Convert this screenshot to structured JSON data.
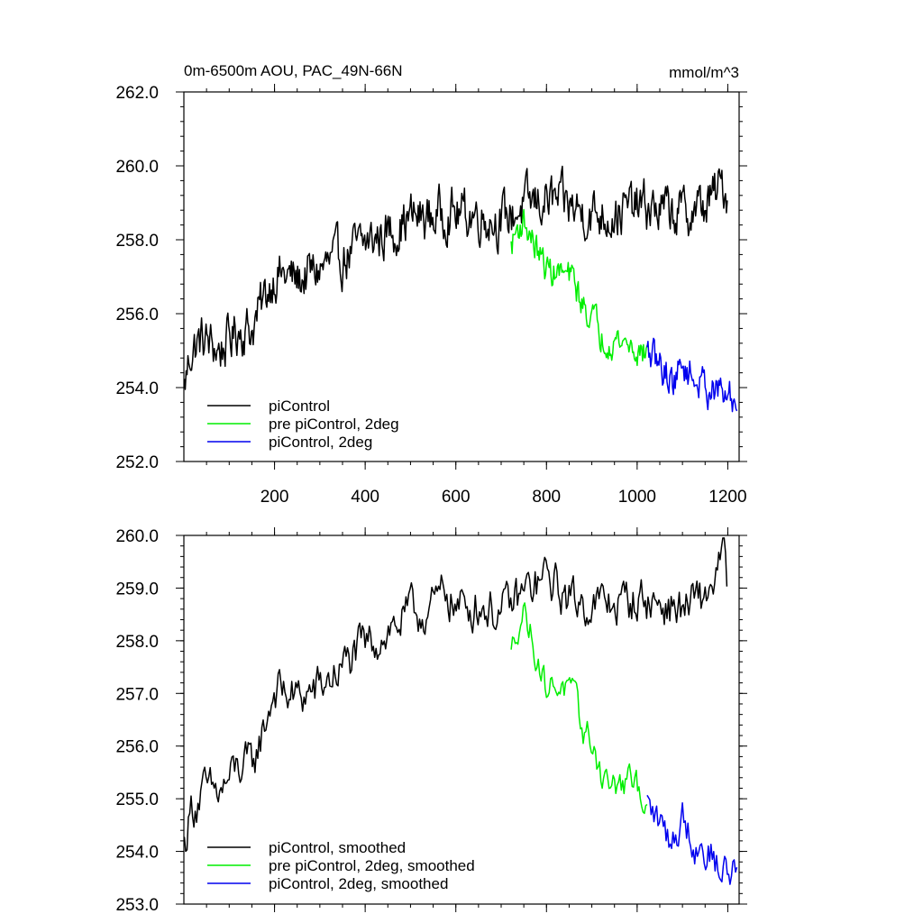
{
  "chart_data": [
    {
      "type": "line",
      "title": "0m-6500m AOU, PAC_49N-66N",
      "units": "mmol/m^3",
      "xlim": [
        0,
        1225
      ],
      "ylim": [
        252,
        262
      ],
      "x_ticks": [
        200,
        400,
        600,
        800,
        1000,
        1200
      ],
      "x_tick_labels": [
        "200",
        "400",
        "600",
        "800",
        "1000",
        "1200"
      ],
      "y_ticks": [
        252,
        254,
        256,
        258,
        260,
        262
      ],
      "y_tick_labels": [
        "252.0",
        "254.0",
        "256.0",
        "258.0",
        "260.0",
        "262.0"
      ],
      "legend_position": "bottom-left",
      "series": [
        {
          "name": "piControl",
          "color": "#000000",
          "noise": 0.55,
          "x": [
            1,
            15,
            40,
            80,
            120,
            150,
            175,
            200,
            250,
            300,
            350,
            400,
            450,
            500,
            550,
            580,
            600,
            650,
            700,
            750,
            800,
            850,
            900,
            950,
            1000,
            1050,
            1100,
            1150,
            1190,
            1200
          ],
          "y": [
            254.0,
            255.0,
            255.3,
            255.0,
            255.6,
            255.6,
            256.3,
            257.1,
            256.9,
            257.2,
            257.5,
            257.9,
            258.2,
            258.6,
            258.6,
            258.8,
            258.7,
            258.7,
            258.5,
            258.9,
            259.1,
            258.9,
            258.7,
            258.7,
            258.9,
            258.8,
            258.7,
            258.9,
            259.5,
            259.2
          ]
        },
        {
          "name": "pre piControl, 2deg",
          "color": "#00ee00",
          "noise": 0.35,
          "x": [
            722,
            735,
            750,
            780,
            800,
            830,
            860,
            880,
            900,
            920,
            950,
            980,
            1000,
            1022
          ],
          "y": [
            257.8,
            258.3,
            258.5,
            257.7,
            257.2,
            257.1,
            256.9,
            256.2,
            256.0,
            255.4,
            255.3,
            255.2,
            255.0,
            254.9
          ]
        },
        {
          "name": "piControl, 2deg",
          "color": "#0000ee",
          "noise": 0.4,
          "x": [
            1022,
            1050,
            1080,
            1100,
            1130,
            1160,
            1190,
            1220
          ],
          "y": [
            254.9,
            254.6,
            254.2,
            254.6,
            254.2,
            254.0,
            253.8,
            253.6
          ]
        }
      ]
    },
    {
      "type": "line",
      "title": "",
      "xlim": [
        0,
        1225
      ],
      "ylim": [
        253,
        260
      ],
      "x_ticks": [
        200,
        400,
        600,
        800,
        1000,
        1200
      ],
      "x_tick_labels": [],
      "y_ticks": [
        253,
        254,
        255,
        256,
        257,
        258,
        259,
        260
      ],
      "y_tick_labels": [
        "253.0",
        "254.0",
        "255.0",
        "256.0",
        "257.0",
        "258.0",
        "259.0",
        "260.0"
      ],
      "legend_position": "bottom-left",
      "series": [
        {
          "name": "piControl, smoothed",
          "color": "#000000",
          "noise": 0.35,
          "x": [
            1,
            15,
            40,
            80,
            120,
            150,
            175,
            200,
            250,
            300,
            350,
            400,
            450,
            500,
            550,
            580,
            600,
            650,
            700,
            750,
            800,
            850,
            900,
            950,
            1000,
            1050,
            1100,
            1150,
            1190,
            1200
          ],
          "y": [
            254.1,
            254.8,
            255.1,
            255.1,
            255.6,
            255.6,
            256.3,
            257.1,
            256.9,
            257.1,
            257.5,
            257.9,
            258.2,
            258.5,
            258.6,
            259.0,
            258.6,
            258.7,
            258.5,
            258.9,
            259.2,
            258.8,
            258.7,
            258.7,
            258.8,
            258.7,
            258.6,
            258.8,
            259.6,
            259.1
          ]
        },
        {
          "name": "pre piControl, 2deg, smoothed",
          "color": "#00ee00",
          "noise": 0.25,
          "x": [
            722,
            735,
            750,
            780,
            800,
            830,
            860,
            880,
            900,
            920,
            950,
            980,
            1000,
            1022
          ],
          "y": [
            257.7,
            258.3,
            258.6,
            257.7,
            257.1,
            257.2,
            256.9,
            256.3,
            256.1,
            255.5,
            255.2,
            255.3,
            255.2,
            255.0
          ]
        },
        {
          "name": "piControl, 2deg, smoothed",
          "color": "#0000ee",
          "noise": 0.3,
          "x": [
            1022,
            1050,
            1080,
            1100,
            1130,
            1160,
            1190,
            1220
          ],
          "y": [
            254.9,
            254.5,
            254.2,
            254.7,
            254.1,
            254.0,
            253.6,
            253.7
          ]
        }
      ]
    }
  ]
}
